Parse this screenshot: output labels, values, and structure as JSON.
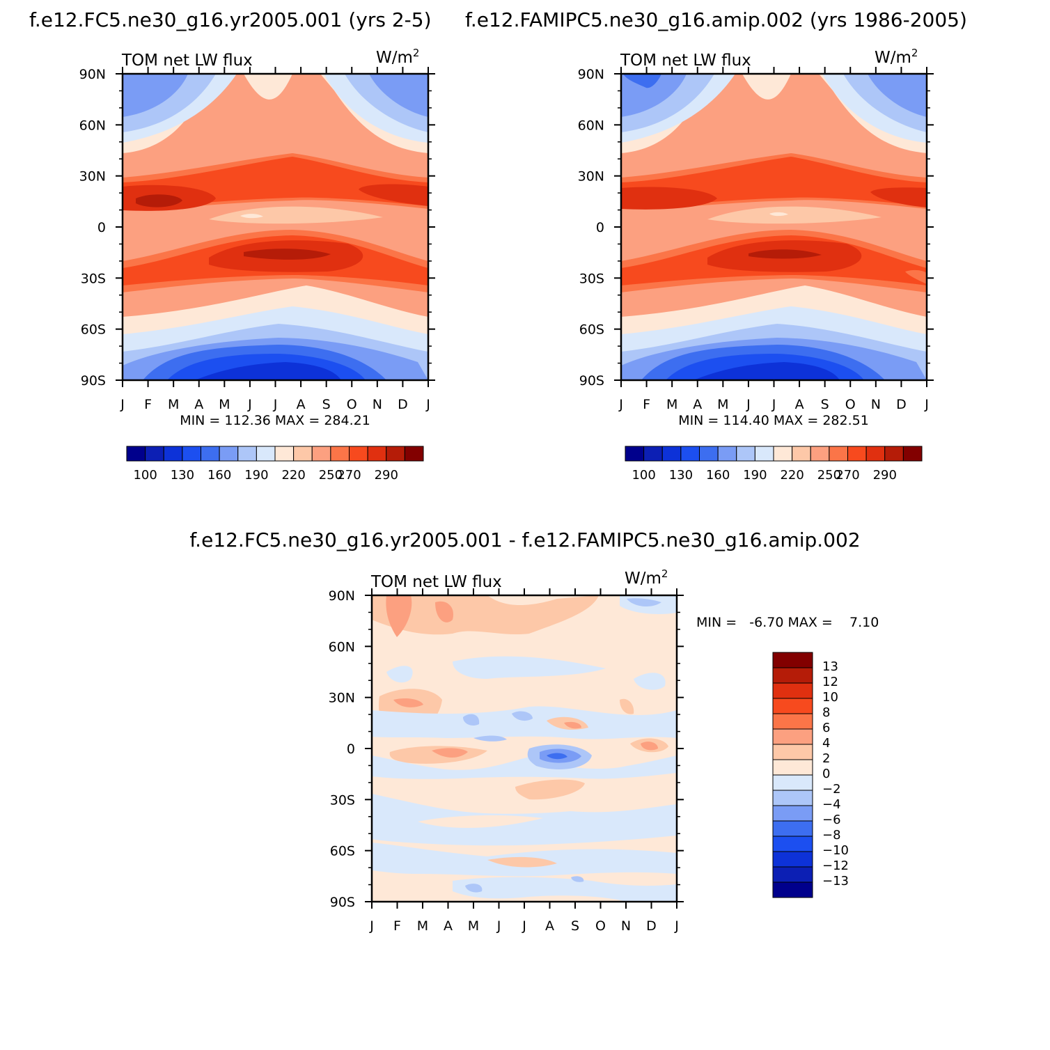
{
  "colors": {
    "abs": [
      "#00008c",
      "#0c1fb4",
      "#0d32d8",
      "#1c4ff0",
      "#3d6ef0",
      "#7a9cf5",
      "#adc6f8",
      "#d9e8fb",
      "#fee8d7",
      "#fdc8a8",
      "#fca080",
      "#fb7548",
      "#f74a1e",
      "#e03010",
      "#b51c08",
      "#820000"
    ],
    "diff": [
      "#00008c",
      "#0c1fb4",
      "#0d32d8",
      "#1c4ff0",
      "#3d6ef0",
      "#7a9cf5",
      "#adc6f8",
      "#d9e8fb",
      "#fee8d7",
      "#fdc8a8",
      "#fca080",
      "#fb7548",
      "#f74a1e",
      "#e03010",
      "#b51c08",
      "#820000"
    ]
  },
  "panels": [
    {
      "title": "f.e12.FC5.ne30_g16.yr2005.001 (yrs 2-5)",
      "var_label": "TOM net LW flux",
      "units_base": "W/m",
      "units_exp": "2",
      "minmax": "MIN = 112.36 MAX = 284.21",
      "yticks": [
        "90N",
        "60N",
        "30N",
        "0",
        "30S",
        "60S",
        "90S"
      ],
      "xticks": [
        "J",
        "F",
        "M",
        "A",
        "M",
        "J",
        "J",
        "A",
        "S",
        "O",
        "N",
        "D",
        "J"
      ],
      "colorbar_labels": [
        "100",
        "130",
        "160",
        "190",
        "220",
        "250",
        "270",
        "290"
      ]
    },
    {
      "title": "f.e12.FAMIPC5.ne30_g16.amip.002 (yrs 1986-2005)",
      "var_label": "TOM net LW flux",
      "units_base": "W/m",
      "units_exp": "2",
      "minmax": "MIN = 114.40 MAX = 282.51",
      "yticks": [
        "90N",
        "60N",
        "30N",
        "0",
        "30S",
        "60S",
        "90S"
      ],
      "xticks": [
        "J",
        "F",
        "M",
        "A",
        "M",
        "J",
        "J",
        "A",
        "S",
        "O",
        "N",
        "D",
        "J"
      ],
      "colorbar_labels": [
        "100",
        "130",
        "160",
        "190",
        "220",
        "250",
        "270",
        "290"
      ]
    },
    {
      "title": "f.e12.FC5.ne30_g16.yr2005.001 - f.e12.FAMIPC5.ne30_g16.amip.002",
      "var_label": "TOM net LW flux",
      "units_base": "W/m",
      "units_exp": "2",
      "minmax": "MIN =   -6.70 MAX =    7.10",
      "yticks": [
        "90N",
        "60N",
        "30N",
        "0",
        "30S",
        "60S",
        "90S"
      ],
      "xticks": [
        "J",
        "F",
        "M",
        "A",
        "M",
        "J",
        "J",
        "A",
        "S",
        "O",
        "N",
        "D",
        "J"
      ],
      "colorbar_labels": [
        "13",
        "12",
        "10",
        "8",
        "6",
        "4",
        "2",
        "0",
        "-2",
        "-4",
        "-6",
        "-8",
        "-10",
        "-12",
        "-13"
      ]
    }
  ],
  "chart_data": [
    {
      "type": "heatmap",
      "title": "f.e12.FC5.ne30_g16.yr2005.001 (yrs 2-5)",
      "xlabel": "",
      "ylabel": "",
      "x_categories": [
        "J",
        "F",
        "M",
        "A",
        "M",
        "J",
        "J",
        "A",
        "S",
        "O",
        "N",
        "D",
        "J"
      ],
      "y_range": [
        -90,
        90
      ],
      "levels": [
        100,
        115,
        130,
        145,
        160,
        175,
        190,
        205,
        220,
        235,
        250,
        260,
        270,
        280,
        290
      ],
      "min": 112.36,
      "max": 284.21,
      "features": "warm bands (>270) near 15N Jan-Mar & Nov-Dec and near 15S Jun-Sep; minimum (<130) over 90S Jun-Aug; cool (<190) over 90N winter months"
    },
    {
      "type": "heatmap",
      "title": "f.e12.FAMIPC5.ne30_g16.amip.002 (yrs 1986-2005)",
      "xlabel": "",
      "ylabel": "",
      "x_categories": [
        "J",
        "F",
        "M",
        "A",
        "M",
        "J",
        "J",
        "A",
        "S",
        "O",
        "N",
        "D",
        "J"
      ],
      "y_range": [
        -90,
        90
      ],
      "levels": [
        100,
        115,
        130,
        145,
        160,
        175,
        190,
        205,
        220,
        235,
        250,
        260,
        270,
        280,
        290
      ],
      "min": 114.4,
      "max": 282.51,
      "features": "pattern similar to first panel; slightly weaker maxima"
    },
    {
      "type": "heatmap",
      "title": "f.e12.FC5.ne30_g16.yr2005.001 - f.e12.FAMIPC5.ne30_g16.amip.002",
      "xlabel": "",
      "ylabel": "",
      "x_categories": [
        "J",
        "F",
        "M",
        "A",
        "M",
        "J",
        "J",
        "A",
        "S",
        "O",
        "N",
        "D",
        "J"
      ],
      "y_range": [
        -90,
        90
      ],
      "levels": [
        -13,
        -12,
        -10,
        -8,
        -6,
        -4,
        -2,
        0,
        2,
        4,
        6,
        8,
        10,
        12,
        13
      ],
      "min": -6.7,
      "max": 7.1,
      "features": "mostly 0-2 with patches of 2-4 near 80N Feb-Apr, 20N Feb-Mar; negative patch (-4 to -6) near 5S Aug"
    }
  ]
}
